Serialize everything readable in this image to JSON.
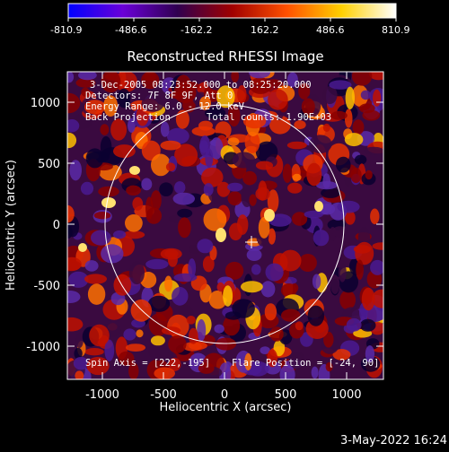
{
  "colorbar": {
    "tick_labels": [
      "-810.9",
      "-486.6",
      "-162.2",
      "162.2",
      "486.6",
      "810.9"
    ],
    "min": -810.9,
    "max": 810.9,
    "stops": [
      "#0000ff",
      "#6a00d8",
      "#300050",
      "#a00000",
      "#ff5000",
      "#ffd000",
      "#ffffff"
    ]
  },
  "plot": {
    "title": "Reconstructed RHESSI Image",
    "xlabel": "Heliocentric X (arcsec)",
    "ylabel": "Heliocentric Y (arcsec)",
    "x_ticks": [
      "-1000",
      "-500",
      "0",
      "500",
      "1000"
    ],
    "y_ticks": [
      "1000",
      "500",
      "0",
      "-500",
      "-1000"
    ],
    "x_range": [
      -1290,
      1290
    ],
    "y_range": [
      -1290,
      1290
    ]
  },
  "annotations": {
    "time_range": "3-Dec-2005 08:23:52.000 to 08:25:20.000",
    "detectors": "Detectors: 7F 8F 9F, Att 0",
    "energy": "Energy Range: 6.0 - 12.0 keV",
    "method": "Back Projection",
    "counts": "Total counts: 1.90E+03",
    "spin_axis": "Spin Axis = [222,-195]",
    "flare_position": "Flare Position = [-24, 90]"
  },
  "solar_disk_radius_arcsec": 972,
  "spin_axis_marker": [
    222,
    -195
  ],
  "footer": {
    "timestamp": "3-May-2022 16:24"
  }
}
